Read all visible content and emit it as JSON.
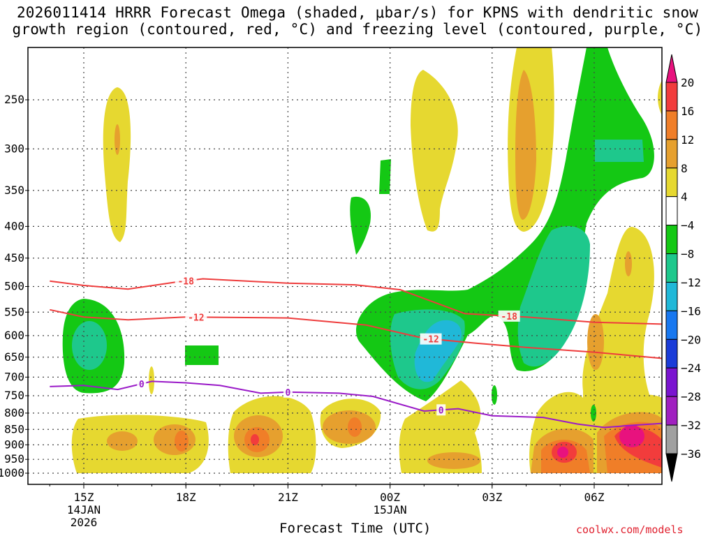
{
  "title_line1": "2026011414 HRRR Forecast Omega (shaded, μbar/s) for KPNS with dendritic snow",
  "title_line2": "growth region (contoured, red, °C) and freezing level (contoured, purple, °C)",
  "xaxis_title": "Forecast Time (UTC)",
  "credit": "coolwx.com/models",
  "chart_data": {
    "type": "contour",
    "title": "2026011414 HRRR Forecast Omega (shaded, μbar/s) for KPNS with dendritic snow growth region (contoured, red, °C) and freezing level (contoured, purple, °C)",
    "xlabel": "Forecast Time (UTC)",
    "ylabel": "",
    "x_ticks": [
      {
        "label": "15Z",
        "sub": [
          "14JAN",
          "2026"
        ],
        "hour": 0
      },
      {
        "label": "18Z",
        "sub": [],
        "hour": 3
      },
      {
        "label": "21Z",
        "sub": [],
        "hour": 6
      },
      {
        "label": "00Z",
        "sub": [
          "15JAN"
        ],
        "hour": 9
      },
      {
        "label": "03Z",
        "sub": [],
        "hour": 12
      },
      {
        "label": "06Z",
        "sub": [],
        "hour": 15
      }
    ],
    "xlim": [
      -1,
      17
    ],
    "y_ticks": [
      1000,
      950,
      900,
      850,
      800,
      750,
      700,
      650,
      600,
      550,
      500,
      450,
      400,
      350,
      300,
      250
    ],
    "y_tick_labels": [
      "1000",
      "950",
      "900",
      "850",
      "800",
      "750",
      "700",
      "650",
      "600",
      "550",
      "500",
      "450",
      "400",
      "350",
      "300",
      "250"
    ],
    "ylim": [
      1010,
      200
    ],
    "y_scale": "log",
    "colorbar": {
      "labels": [
        "20",
        "16",
        "12",
        "8",
        "4",
        "−4",
        "−8",
        "−12",
        "−16",
        "−20",
        "−24",
        "−28",
        "−32",
        "−36"
      ],
      "colors": [
        "#e8127e",
        "#f23c3c",
        "#f07e28",
        "#e6a02e",
        "#e6d830",
        "#ffffff",
        "#14c814",
        "#1ec88c",
        "#20b8d8",
        "#1878f0",
        "#1a3cd8",
        "#7a14d0",
        "#a020c0",
        "#a0a0a0",
        "#000000"
      ]
    },
    "series": [
      {
        "name": "-18",
        "color": "#ee3c3c",
        "type": "line",
        "points": [
          [
            -1,
            490
          ],
          [
            0,
            498
          ],
          [
            1.3,
            505
          ],
          [
            2.7,
            492
          ],
          [
            3.5,
            486
          ],
          [
            6,
            494
          ],
          [
            8,
            497
          ],
          [
            9.3,
            506
          ],
          [
            11.2,
            553
          ],
          [
            13,
            560
          ],
          [
            15,
            571
          ],
          [
            17,
            575
          ]
        ]
      },
      {
        "name": "-12",
        "color": "#ee3c3c",
        "type": "line",
        "points": [
          [
            -1,
            545
          ],
          [
            0,
            560
          ],
          [
            1.3,
            566
          ],
          [
            3,
            560
          ],
          [
            6,
            562
          ],
          [
            8.3,
            577
          ],
          [
            10,
            606
          ],
          [
            11.5,
            617
          ],
          [
            13,
            627
          ],
          [
            15,
            638
          ],
          [
            17,
            653
          ]
        ]
      },
      {
        "name": "0",
        "color": "#9a1ac8",
        "type": "line",
        "points": [
          [
            -1,
            725
          ],
          [
            0,
            722
          ],
          [
            1,
            733
          ],
          [
            2,
            711
          ],
          [
            3,
            715
          ],
          [
            4,
            722
          ],
          [
            5.2,
            743
          ],
          [
            6,
            740
          ],
          [
            7.5,
            743
          ],
          [
            8.5,
            752
          ],
          [
            10,
            794
          ],
          [
            11,
            787
          ],
          [
            12,
            808
          ],
          [
            13.5,
            813
          ],
          [
            14.5,
            833
          ],
          [
            15.3,
            844
          ],
          [
            16,
            838
          ],
          [
            17,
            831
          ]
        ]
      }
    ]
  }
}
